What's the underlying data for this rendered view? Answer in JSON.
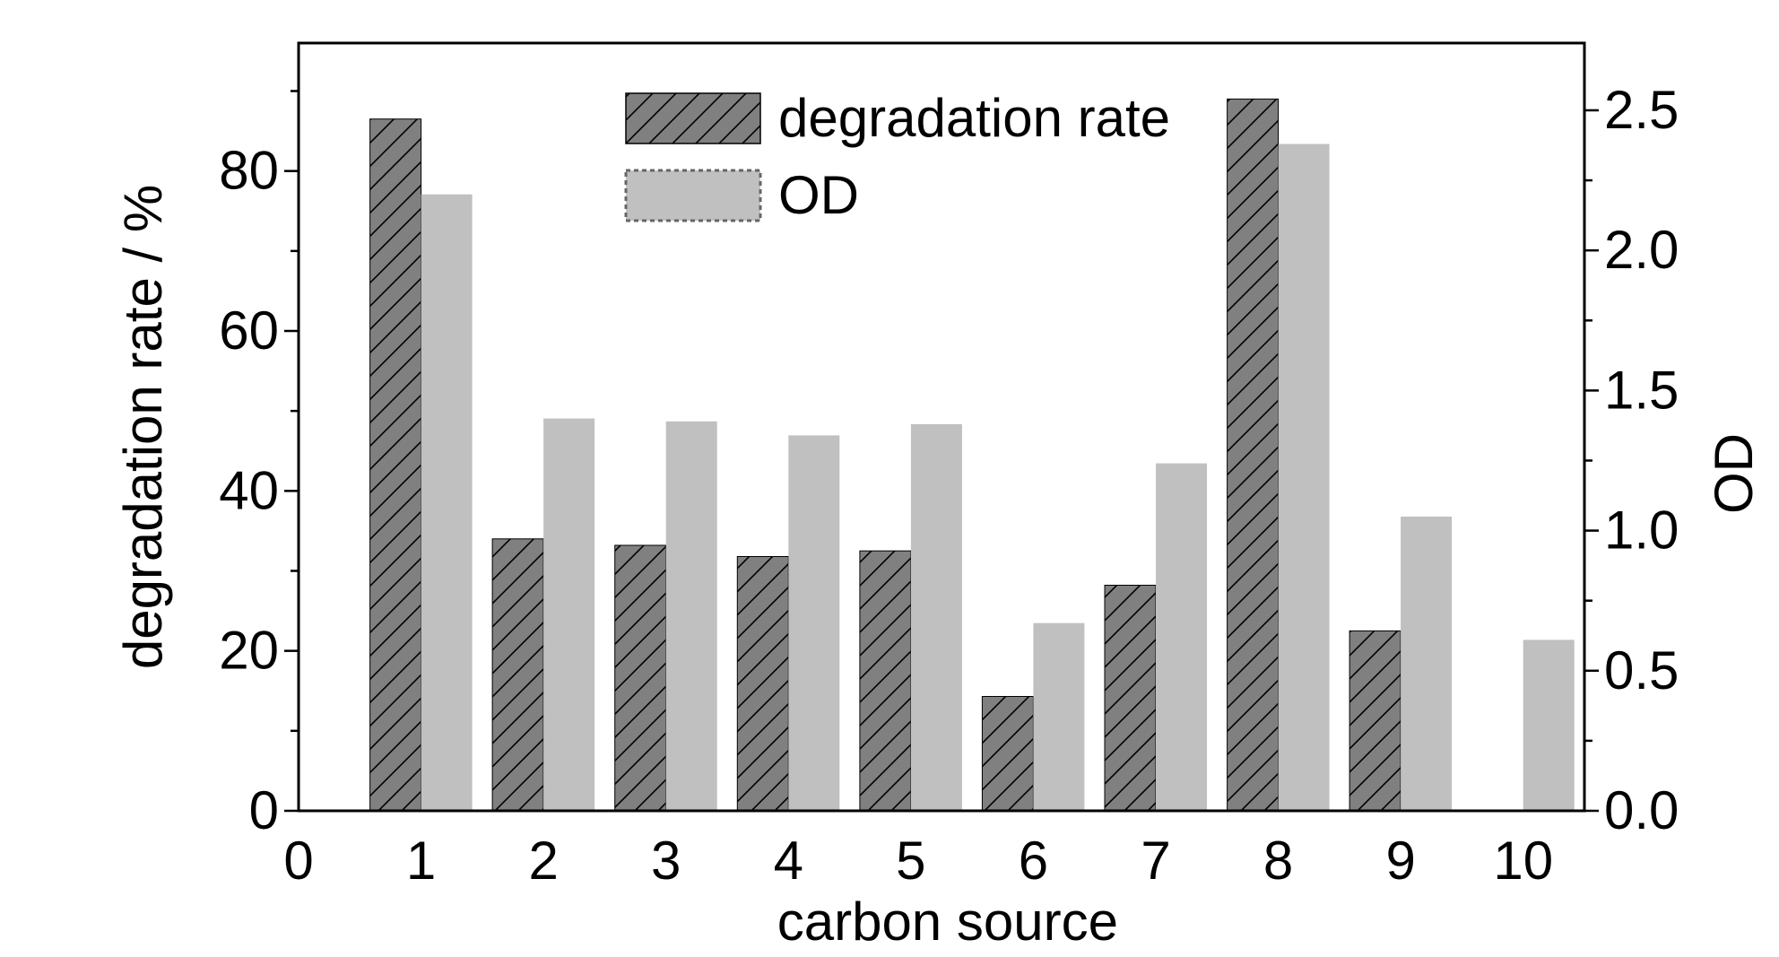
{
  "chart_data": {
    "type": "bar",
    "xlabel": "carbon source",
    "ylabel": "degradation rate / %",
    "y2label": "OD",
    "x_ticks": [
      "0",
      "1",
      "2",
      "3",
      "4",
      "5",
      "6",
      "7",
      "8",
      "9",
      "10"
    ],
    "categories": [
      "1",
      "2",
      "3",
      "4",
      "5",
      "6",
      "7",
      "8",
      "9",
      "10"
    ],
    "y_ticks": [
      "0",
      "20",
      "40",
      "60",
      "80"
    ],
    "y2_ticks": [
      "0.0",
      "0.5",
      "1.0",
      "1.5",
      "2.0",
      "2.5"
    ],
    "xlim": [
      0,
      10.5
    ],
    "ylim": [
      0,
      96
    ],
    "y2lim": [
      0,
      2.74
    ],
    "grid": false,
    "legend_position": "top-center",
    "series": [
      {
        "name": "degradation rate",
        "axis": "left",
        "color": "#808080",
        "pattern": "diagonal-hatch",
        "values": [
          86.5,
          34,
          33.2,
          31.8,
          32.5,
          14.3,
          28.2,
          89,
          22.5,
          null
        ]
      },
      {
        "name": "OD",
        "axis": "right",
        "color": "#c0c0c0",
        "pattern": "solid",
        "values": [
          2.2,
          1.4,
          1.39,
          1.34,
          1.38,
          0.67,
          1.24,
          2.38,
          1.05,
          0.61
        ]
      }
    ]
  }
}
